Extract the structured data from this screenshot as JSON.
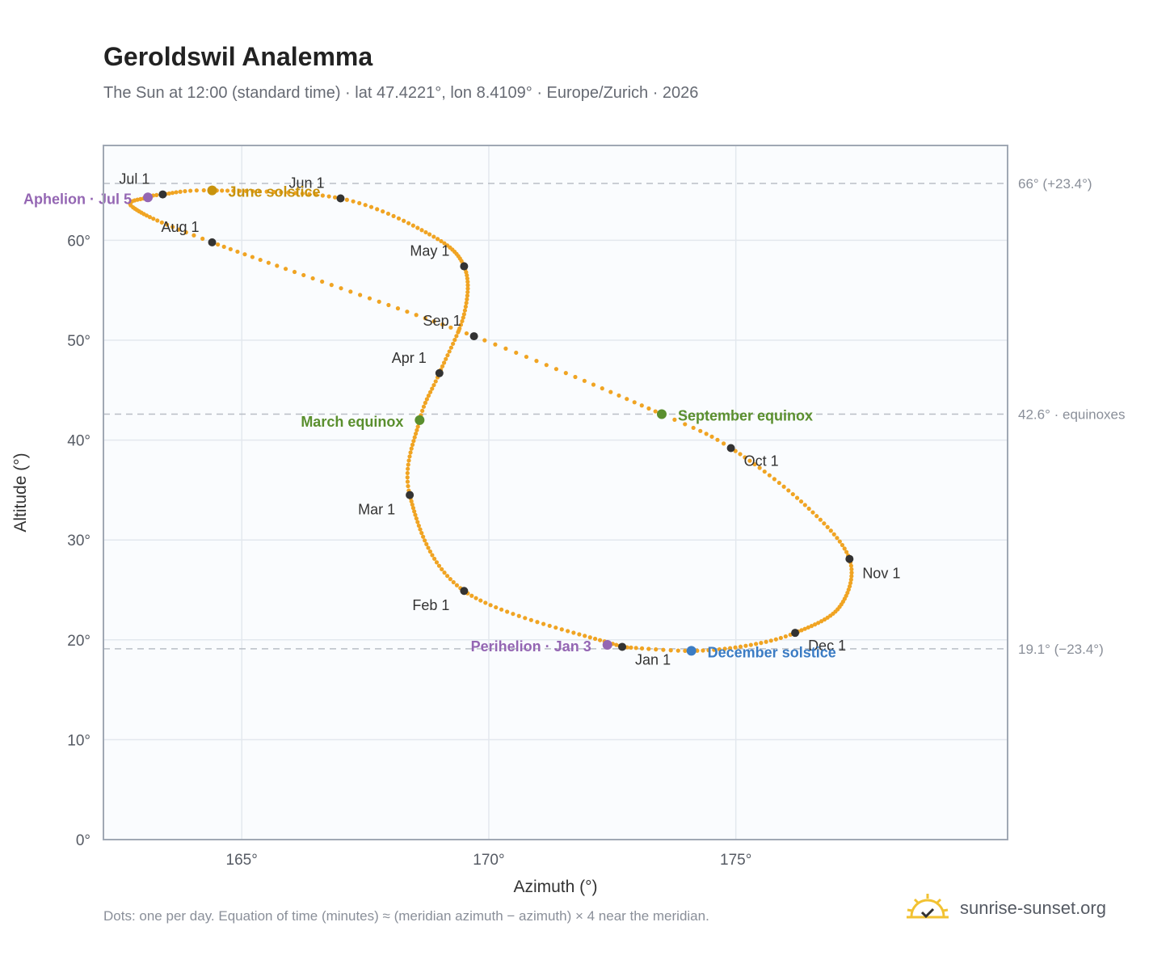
{
  "page": {
    "title": "Geroldswil Analemma",
    "subtitle": "The Sun at 12:00 (standard time) · lat 47.4221°, lon 8.4109° · Europe/Zurich · 2026",
    "footnote": "Dots: one per day. Equation of time (minutes) ≈ (meridian azimuth − azimuth) × 4 near the meridian.",
    "brand": "sunrise-sunset.org"
  },
  "chart_data": {
    "type": "scatter",
    "xlabel": "Azimuth (°)",
    "ylabel": "Altitude (°)",
    "xlim": [
      162.2,
      180.5
    ],
    "ylim": [
      0,
      69.5
    ],
    "xticks": [
      165,
      170,
      175
    ],
    "xtick_labels": [
      "165°",
      "170°",
      "175°"
    ],
    "yticks": [
      0,
      10,
      20,
      30,
      40,
      50,
      60
    ],
    "ytick_labels": [
      "0°",
      "10°",
      "20°",
      "30°",
      "40°",
      "50°",
      "60°"
    ],
    "grid": true,
    "colors": {
      "curve": "#f0a423",
      "month_marker": "#333333",
      "solstice_june": "#c8930d",
      "solstice_december": "#3b7cc4",
      "equinox": "#5a8f2e",
      "apsis": "#9466b3",
      "reference_line": "#b9bec6"
    },
    "path_anchors": [
      {
        "day": 1,
        "x": 172.7,
        "y": 19.3
      },
      {
        "day": 32,
        "x": 169.5,
        "y": 24.9
      },
      {
        "day": 60,
        "x": 168.4,
        "y": 34.5
      },
      {
        "day": 79,
        "x": 168.6,
        "y": 42.0
      },
      {
        "day": 91,
        "x": 169.0,
        "y": 46.7
      },
      {
        "day": 107,
        "x": 169.5,
        "y": 52.6
      },
      {
        "day": 121,
        "x": 169.5,
        "y": 57.4
      },
      {
        "day": 135,
        "x": 168.8,
        "y": 60.6
      },
      {
        "day": 152,
        "x": 167.0,
        "y": 64.2
      },
      {
        "day": 172,
        "x": 164.4,
        "y": 65.0
      },
      {
        "day": 182,
        "x": 163.4,
        "y": 64.6
      },
      {
        "day": 186,
        "x": 163.1,
        "y": 64.3
      },
      {
        "day": 196,
        "x": 162.8,
        "y": 63.3
      },
      {
        "day": 213,
        "x": 164.4,
        "y": 59.8
      },
      {
        "day": 244,
        "x": 169.7,
        "y": 50.4
      },
      {
        "day": 265,
        "x": 173.5,
        "y": 42.6
      },
      {
        "day": 274,
        "x": 174.9,
        "y": 39.2
      },
      {
        "day": 290,
        "x": 176.4,
        "y": 33.5
      },
      {
        "day": 305,
        "x": 177.3,
        "y": 28.1
      },
      {
        "day": 320,
        "x": 177.1,
        "y": 23.3
      },
      {
        "day": 335,
        "x": 176.2,
        "y": 20.7
      },
      {
        "day": 345,
        "x": 175.2,
        "y": 19.4
      },
      {
        "day": 355,
        "x": 174.1,
        "y": 18.9
      },
      {
        "day": 365,
        "x": 172.8,
        "y": 19.25
      }
    ],
    "month_markers": [
      {
        "label": "Jan 1",
        "x": 172.7,
        "y": 19.3,
        "dx": 16,
        "dy": 22
      },
      {
        "label": "Feb 1",
        "x": 169.5,
        "y": 24.9,
        "dx": -18,
        "dy": 24
      },
      {
        "label": "Mar 1",
        "x": 168.4,
        "y": 34.5,
        "dx": -18,
        "dy": 24
      },
      {
        "label": "Apr 1",
        "x": 169.0,
        "y": 46.7,
        "dx": -16,
        "dy": -13
      },
      {
        "label": "May 1",
        "x": 169.5,
        "y": 57.4,
        "dx": -18,
        "dy": -13
      },
      {
        "label": "Jun 1",
        "x": 167.0,
        "y": 64.2,
        "dx": -20,
        "dy": -13
      },
      {
        "label": "Jul 1",
        "x": 163.4,
        "y": 64.6,
        "dx": -16,
        "dy": -13
      },
      {
        "label": "Aug 1",
        "x": 164.4,
        "y": 59.8,
        "dx": -16,
        "dy": -13
      },
      {
        "label": "Sep 1",
        "x": 169.7,
        "y": 50.4,
        "dx": -16,
        "dy": -13
      },
      {
        "label": "Oct 1",
        "x": 174.9,
        "y": 39.2,
        "dx": 16,
        "dy": 22
      },
      {
        "label": "Nov 1",
        "x": 177.3,
        "y": 28.1,
        "dx": 16,
        "dy": 24
      },
      {
        "label": "Dec 1",
        "x": 176.2,
        "y": 20.7,
        "dx": 16,
        "dy": 22
      }
    ],
    "events": [
      {
        "label": "June solstice",
        "x": 164.4,
        "y": 65.0,
        "color": "#c8930d",
        "anchor": "start",
        "dx": 20,
        "dy": 8
      },
      {
        "label": "December solstice",
        "x": 174.1,
        "y": 18.9,
        "color": "#3b7cc4",
        "anchor": "start",
        "dx": 20,
        "dy": 8
      },
      {
        "label": "March equinox",
        "x": 168.6,
        "y": 42.0,
        "color": "#5a8f2e",
        "anchor": "end",
        "dx": -20,
        "dy": 8
      },
      {
        "label": "September equinox",
        "x": 173.5,
        "y": 42.6,
        "color": "#5a8f2e",
        "anchor": "start",
        "dx": 20,
        "dy": 8
      },
      {
        "label": "Aphelion · Jul 5",
        "x": 163.1,
        "y": 64.3,
        "color": "#9466b3",
        "anchor": "end",
        "dx": -20,
        "dy": 8
      },
      {
        "label": "Perihelion · Jan 3",
        "x": 172.4,
        "y": 19.5,
        "color": "#9466b3",
        "anchor": "end",
        "dx": -20,
        "dy": 8
      }
    ],
    "reference_lines": [
      {
        "y": 65.7,
        "label": "66° (+23.4°)"
      },
      {
        "y": 42.6,
        "label": "42.6° · equinoxes"
      },
      {
        "y": 19.1,
        "label": "19.1° (−23.4°)"
      }
    ]
  }
}
